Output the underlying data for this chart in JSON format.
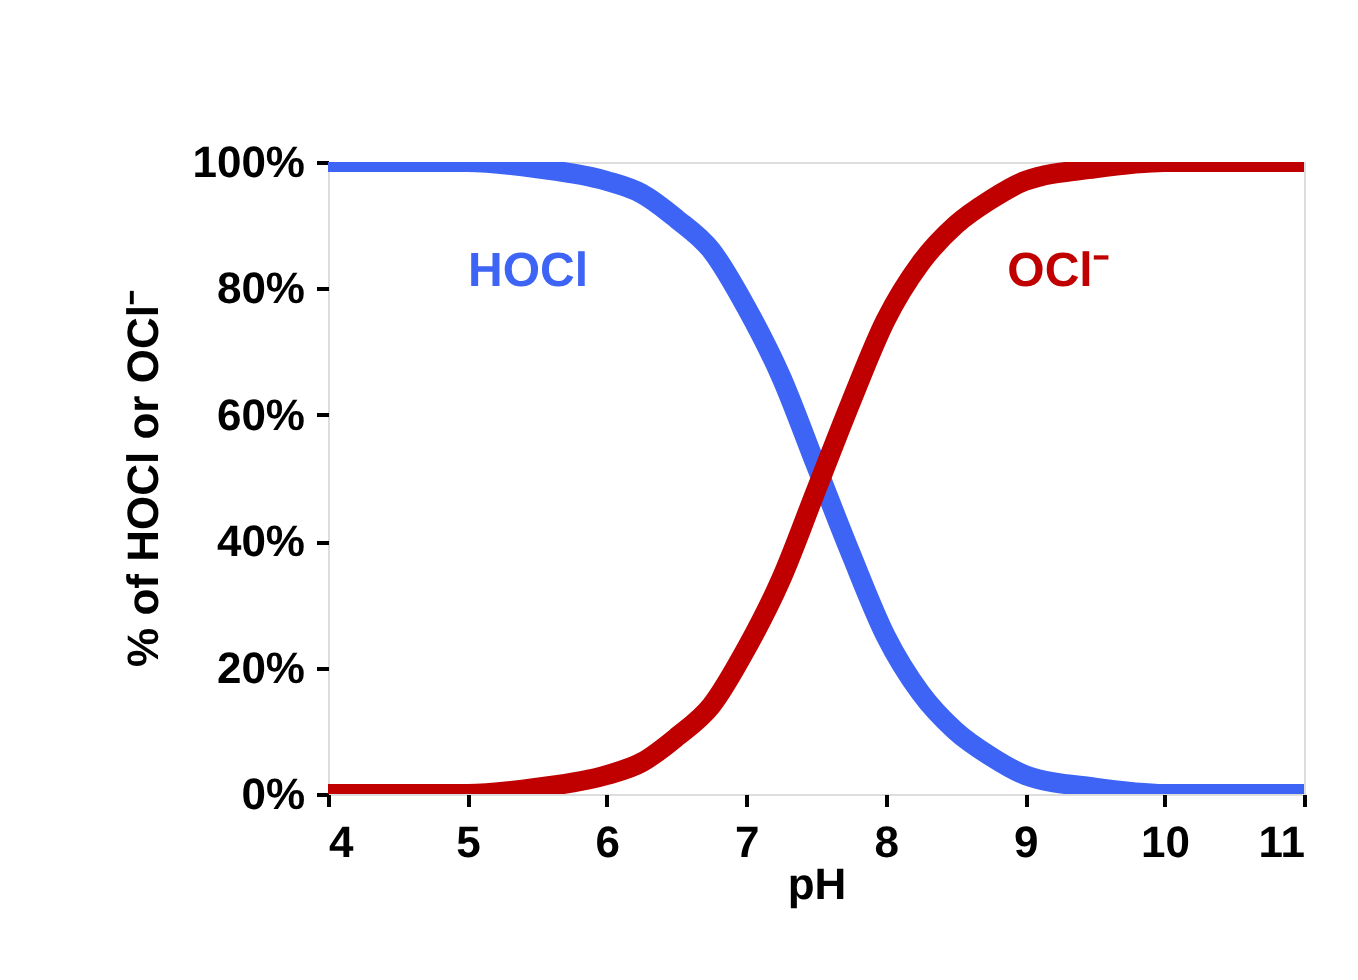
{
  "chart_data": {
    "type": "line",
    "xlabel": "pH",
    "ylabel": "% of HOCl or OCl⁻",
    "x": [
      4,
      4.5,
      5,
      5.5,
      6,
      6.25,
      6.5,
      6.75,
      7,
      7.25,
      7.5,
      7.75,
      8,
      8.25,
      8.5,
      8.75,
      9,
      9.5,
      10,
      10.5,
      11
    ],
    "series": [
      {
        "name": "HOCl",
        "color": "#3d64f5",
        "values": [
          100,
          100,
          100,
          99,
          97,
          95,
          91,
          86,
          77,
          66,
          52,
          38,
          25,
          16,
          10,
          6,
          3,
          1,
          0,
          0,
          0
        ]
      },
      {
        "name": "OCl⁻",
        "color": "#c00000",
        "values": [
          0,
          0,
          0,
          1,
          3,
          5,
          9,
          14,
          23,
          34,
          48,
          62,
          75,
          84,
          90,
          94,
          97,
          99,
          100,
          100,
          100
        ]
      }
    ],
    "xlim": [
      4,
      11
    ],
    "xticks": [
      4,
      5,
      6,
      7,
      8,
      9,
      10,
      11
    ],
    "ylim": [
      0,
      100
    ],
    "yticks": [
      {
        "value": 0,
        "label": "0%"
      },
      {
        "value": 20,
        "label": "20%"
      },
      {
        "value": 40,
        "label": "40%"
      },
      {
        "value": 60,
        "label": "60%"
      },
      {
        "value": 80,
        "label": "80%"
      },
      {
        "value": 100,
        "label": "100%"
      }
    ],
    "grid": false,
    "legend": false,
    "marker": "none",
    "line_style": "solid"
  }
}
